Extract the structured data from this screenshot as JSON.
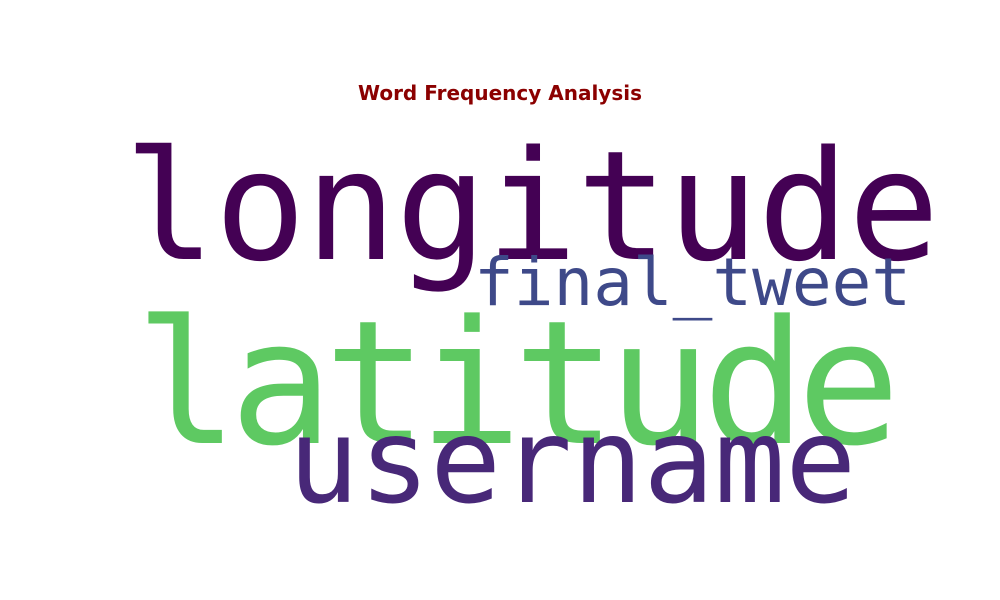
{
  "title": "Word Frequency Analysis",
  "title_color": "#8b0000",
  "background_color": "#ffffff",
  "words": [
    {
      "text": "longitude",
      "color": "#440154",
      "rank": 2
    },
    {
      "text": "final_tweet",
      "color": "#3e4989",
      "rank": 4
    },
    {
      "text": "latitude",
      "color": "#5ec962",
      "rank": 1
    },
    {
      "text": "username",
      "color": "#482878",
      "rank": 3
    }
  ]
}
